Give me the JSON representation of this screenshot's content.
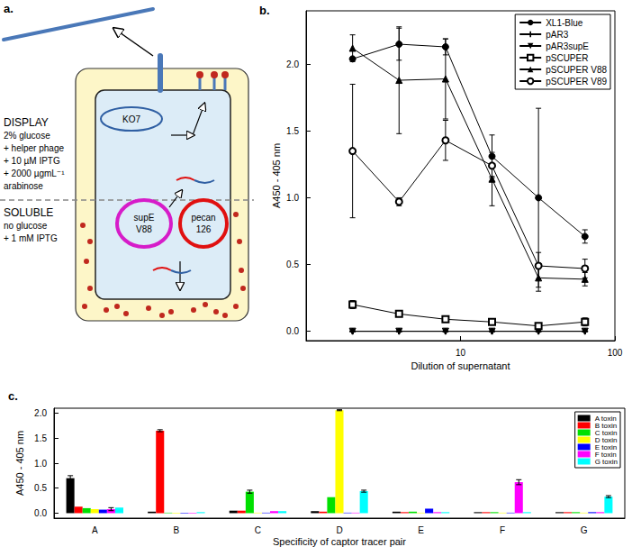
{
  "diagram": {
    "label": "a.",
    "display": [
      "DISPLAY",
      "2% glucose",
      "+ helper phage",
      "+ 10 µM IPTG",
      "+ 2000 µgmL⁻¹",
      "arabinose"
    ],
    "soluble": [
      "SOLUBLE",
      "no glucose",
      "+ 1 mM IPTG"
    ],
    "plasmids": {
      "helper": [
        "KO7"
      ],
      "suppressor": [
        "supE",
        "V88"
      ],
      "library": [
        "pecan",
        "126"
      ]
    }
  },
  "chart_data": [
    {
      "type": "line",
      "title": "b.",
      "x_label": "Dilution of supernatant",
      "y_label": "A450 - 405 nm",
      "x": [
        2,
        4,
        8,
        16,
        32,
        64
      ],
      "log": "x",
      "xlim": [
        1,
        100
      ],
      "xticks": [
        10,
        100
      ],
      "ylim": [
        -0.07,
        2.4
      ],
      "yticks": [
        {
          "value": 0,
          "label": "0.0"
        },
        {
          "value": 0.5,
          "label": "0.5"
        },
        {
          "value": 1,
          "label": "1.0"
        },
        {
          "value": 1.5,
          "label": "1.5"
        },
        {
          "value": 2,
          "label": "2.0"
        }
      ],
      "legend": "upper right",
      "series": [
        {
          "name": "XL1-Blue",
          "color": "#000000",
          "marker": "circle",
          "line_style": "solid",
          "values": [
            2.04,
            2.15,
            2.13,
            1.31,
            1.0,
            0.71
          ],
          "errors": [
            null,
            0.12,
            0.06,
            0.16,
            0.67,
            0.05
          ]
        },
        {
          "name": "pAR3",
          "color": "#000000",
          "marker": "plus",
          "line_style": "solid",
          "values": [
            0,
            0,
            0,
            0,
            0,
            0
          ],
          "errors": [
            null,
            null,
            null,
            null,
            null,
            null
          ]
        },
        {
          "name": "pAR3supE",
          "color": "#000000",
          "marker": "triangle-down",
          "line_style": "solid",
          "values": [
            0,
            0,
            0,
            0,
            0,
            0
          ],
          "errors": [
            null,
            null,
            null,
            null,
            null,
            null
          ]
        },
        {
          "name": "pSCUPER",
          "color": "#000000",
          "marker": "square-open",
          "line_style": "solid",
          "values": [
            0.2,
            0.13,
            0.09,
            0.07,
            0.04,
            0.07
          ],
          "errors": [
            0.03,
            null,
            null,
            null,
            null,
            0.03
          ]
        },
        {
          "name": "pSCUPER V88",
          "color": "#000000",
          "marker": "triangle",
          "line_style": "solid",
          "values": [
            2.12,
            1.88,
            1.89,
            1.14,
            0.4,
            0.39
          ],
          "errors": [
            0.1,
            0.4,
            0.3,
            0.2,
            0.1,
            0.05
          ]
        },
        {
          "name": "pSCUPER V89",
          "color": "#000000",
          "marker": "circle-open",
          "line_style": "solid",
          "values": [
            1.35,
            0.97,
            1.43,
            1.24,
            0.49,
            0.47
          ],
          "errors": [
            0.5,
            0.03,
            0.15,
            0.08,
            0.1,
            0.07
          ]
        }
      ]
    },
    {
      "type": "bar",
      "title": "c.",
      "x_label": "Specificity of captor tracer pair",
      "y_label": "A450 - 405 nm",
      "categories": [
        "A",
        "B",
        "C",
        "D",
        "E",
        "F",
        "G"
      ],
      "ylim": [
        -0.1,
        2.1
      ],
      "yticks": [
        {
          "value": 0,
          "label": "0.0"
        },
        {
          "value": 0.5,
          "label": "0.5"
        },
        {
          "value": 1,
          "label": "1.0"
        },
        {
          "value": 1.5,
          "label": "1.5"
        },
        {
          "value": 2,
          "label": "2.0"
        }
      ],
      "legend": "upper right",
      "series": [
        {
          "name": "A toxin",
          "color": "#000000",
          "values": [
            0.7,
            0.03,
            0.05,
            0.04,
            0.03,
            0.02,
            0.02
          ],
          "errors": [
            0.05,
            null,
            null,
            null,
            null,
            null,
            null
          ]
        },
        {
          "name": "B toxin",
          "color": "#ff0000",
          "values": [
            0.13,
            1.65,
            0.05,
            0.03,
            0.02,
            0.02,
            0.02
          ],
          "errors": [
            null,
            0.02,
            null,
            null,
            null,
            null,
            null
          ]
        },
        {
          "name": "C toxin",
          "color": "#00e000",
          "values": [
            0.1,
            0.01,
            0.43,
            0.32,
            0.03,
            0.02,
            0.02
          ],
          "errors": [
            null,
            null,
            0.03,
            null,
            null,
            null,
            null
          ]
        },
        {
          "name": "D toxin",
          "color": "#ffff00",
          "values": [
            0.08,
            -0.01,
            0.01,
            2.06,
            0.01,
            0.01,
            0.01
          ],
          "errors": [
            null,
            null,
            null,
            0.01,
            null,
            null,
            null
          ]
        },
        {
          "name": "E toxin",
          "color": "#0000ff",
          "values": [
            0.07,
            -0.01,
            0.01,
            0.01,
            0.09,
            0.01,
            0.02
          ],
          "errors": [
            null,
            null,
            null,
            null,
            null,
            null,
            null
          ]
        },
        {
          "name": "F toxin",
          "color": "#ff00ff",
          "values": [
            0.08,
            -0.01,
            0.04,
            0.01,
            0.02,
            0.62,
            0.02
          ],
          "errors": [
            0.03,
            null,
            null,
            null,
            null,
            0.05,
            null
          ]
        },
        {
          "name": "G toxin",
          "color": "#00ffff",
          "values": [
            0.11,
            0.02,
            0.04,
            0.44,
            0.02,
            0.02,
            0.33
          ],
          "errors": [
            null,
            null,
            null,
            0.02,
            null,
            null,
            0.02
          ]
        }
      ]
    }
  ]
}
